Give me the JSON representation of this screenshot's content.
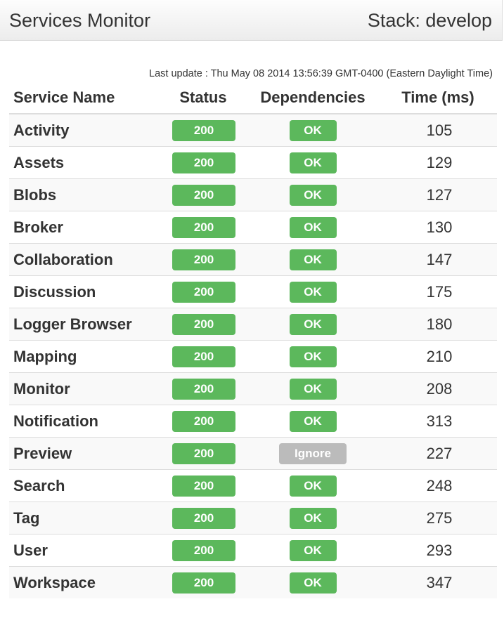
{
  "header": {
    "title": "Services Monitor",
    "stack": "Stack: develop"
  },
  "last_update": "Last update : Thu May 08 2014 13:56:39 GMT-0400 (Eastern Daylight Time)",
  "table": {
    "columns": [
      "Service Name",
      "Status",
      "Dependencies",
      "Time (ms)"
    ],
    "rows": [
      {
        "name": "Activity",
        "status": "200",
        "dependencies": "OK",
        "time": "105"
      },
      {
        "name": "Assets",
        "status": "200",
        "dependencies": "OK",
        "time": "129"
      },
      {
        "name": "Blobs",
        "status": "200",
        "dependencies": "OK",
        "time": "127"
      },
      {
        "name": "Broker",
        "status": "200",
        "dependencies": "OK",
        "time": "130"
      },
      {
        "name": "Collaboration",
        "status": "200",
        "dependencies": "OK",
        "time": "147"
      },
      {
        "name": "Discussion",
        "status": "200",
        "dependencies": "OK",
        "time": "175"
      },
      {
        "name": "Logger Browser",
        "status": "200",
        "dependencies": "OK",
        "time": "180"
      },
      {
        "name": "Mapping",
        "status": "200",
        "dependencies": "OK",
        "time": "210"
      },
      {
        "name": "Monitor",
        "status": "200",
        "dependencies": "OK",
        "time": "208"
      },
      {
        "name": "Notification",
        "status": "200",
        "dependencies": "OK",
        "time": "313"
      },
      {
        "name": "Preview",
        "status": "200",
        "dependencies": "Ignore",
        "time": "227"
      },
      {
        "name": "Search",
        "status": "200",
        "dependencies": "OK",
        "time": "248"
      },
      {
        "name": "Tag",
        "status": "200",
        "dependencies": "OK",
        "time": "275"
      },
      {
        "name": "User",
        "status": "200",
        "dependencies": "OK",
        "time": "293"
      },
      {
        "name": "Workspace",
        "status": "200",
        "dependencies": "OK",
        "time": "347"
      }
    ]
  },
  "colors": {
    "success": "#5cb85c",
    "ignored": "#bbbbbb",
    "text": "#333333",
    "row_stripe": "#f9f9f9"
  }
}
